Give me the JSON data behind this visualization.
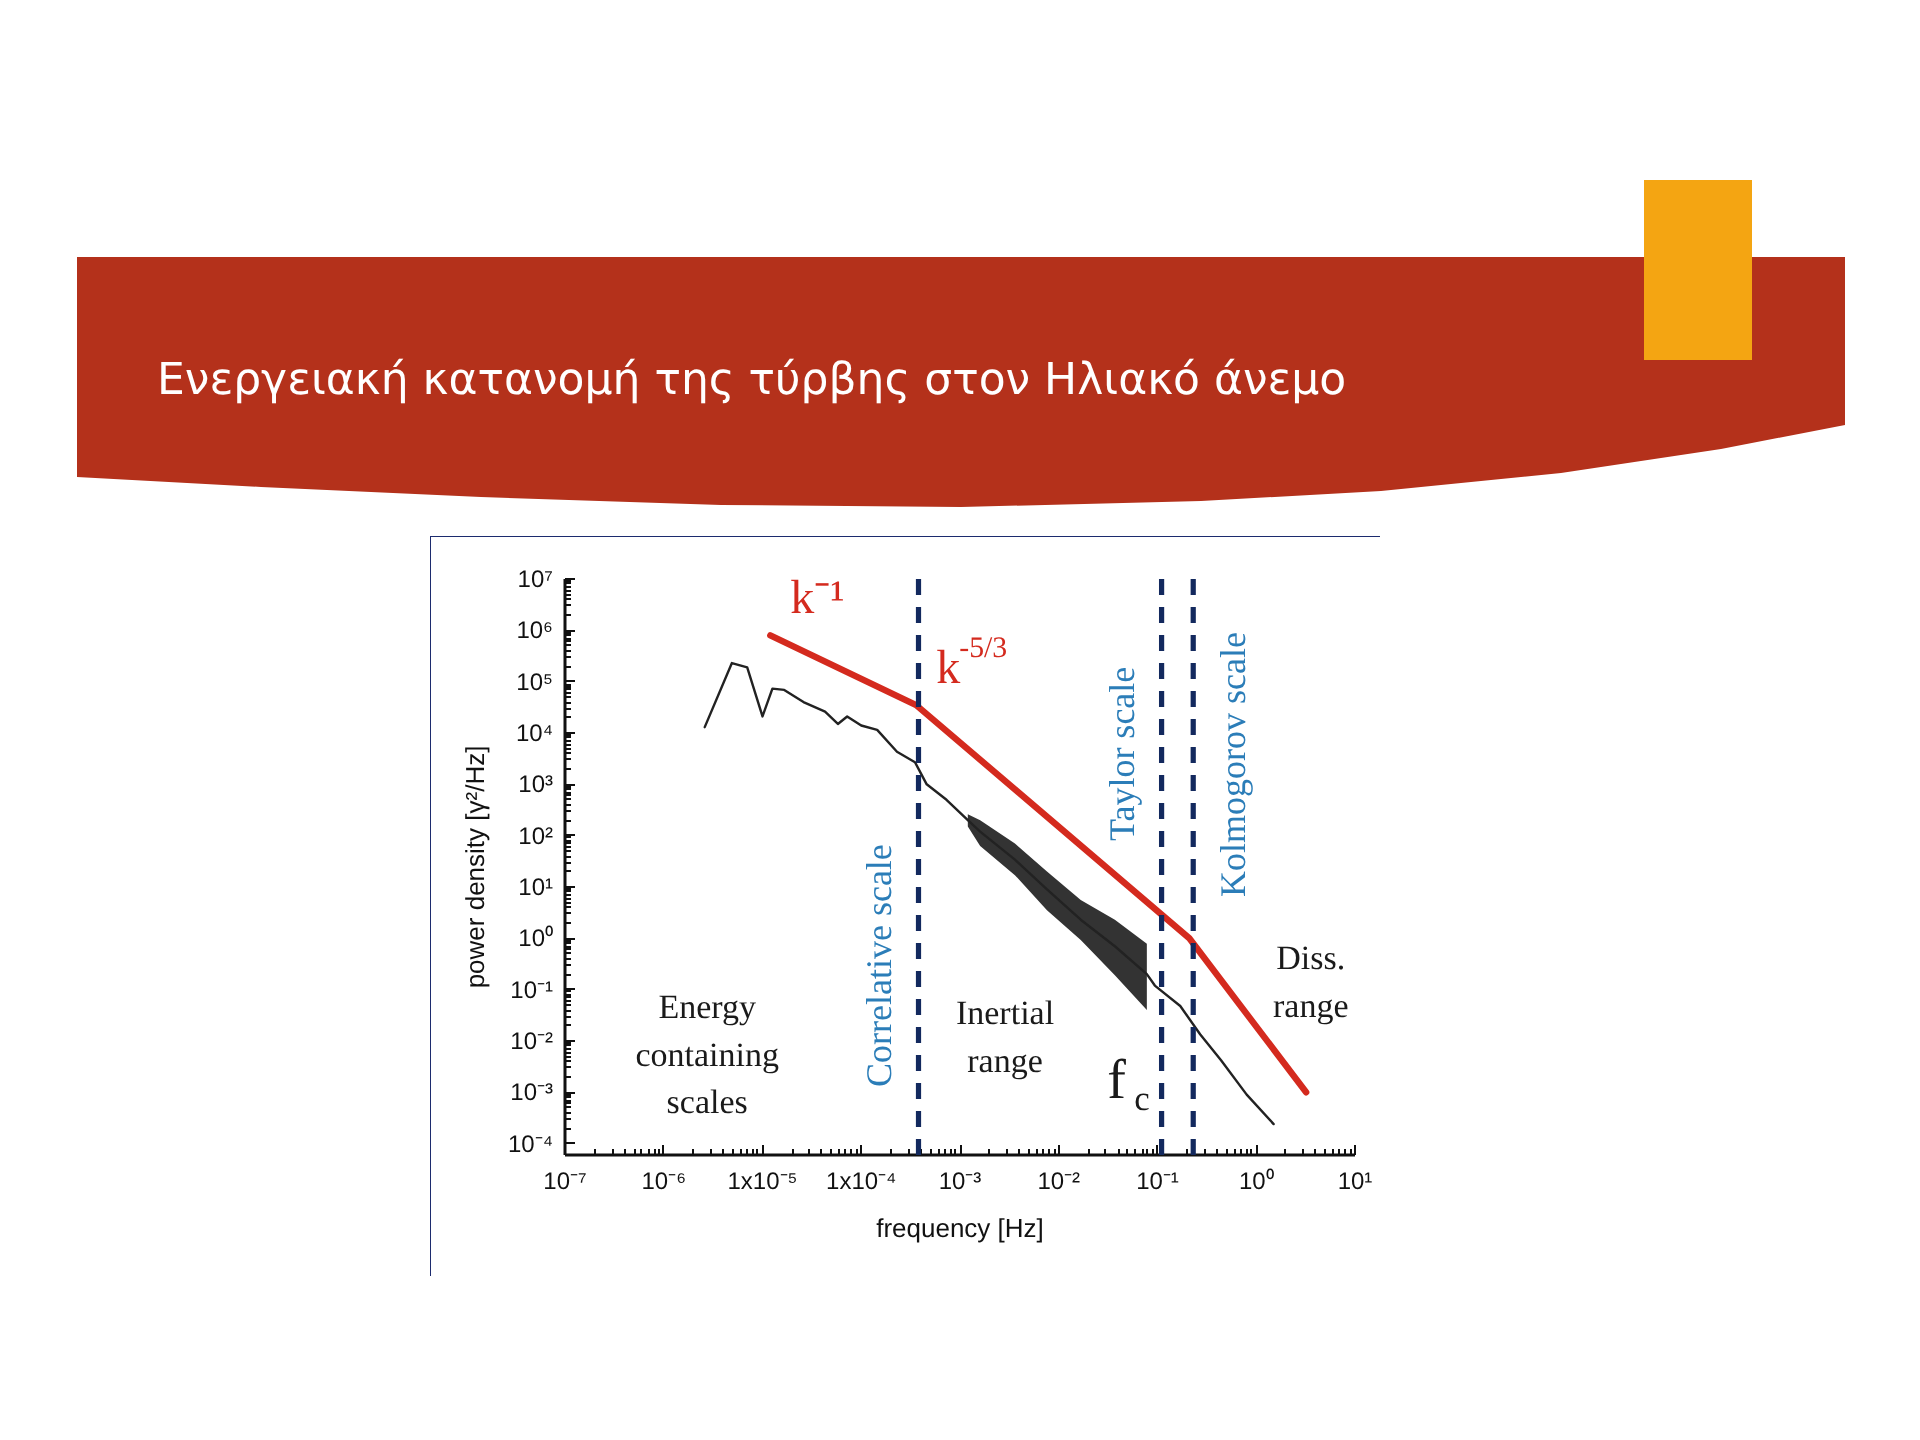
{
  "chart_data": {
    "type": "line",
    "title": "Ενεργειακή κατανομή της τύρβης στον Ηλιακό άνεμο",
    "xlabel": "frequency [Hz]",
    "ylabel": "power density [γ²/Hz]",
    "log": "xy",
    "xlim": [
      1e-07,
      10
    ],
    "ylim": [
      6e-05,
      10000000.0
    ],
    "xticks": [
      {
        "value": 1e-07,
        "label": "10⁻⁷"
      },
      {
        "value": 1e-06,
        "label": "10⁻⁶"
      },
      {
        "value": 1e-05,
        "label": "1x10⁻⁵"
      },
      {
        "value": 0.0001,
        "label": "1x10⁻⁴"
      },
      {
        "value": 0.001,
        "label": "10⁻³"
      },
      {
        "value": 0.01,
        "label": "10⁻²"
      },
      {
        "value": 0.1,
        "label": "10⁻¹"
      },
      {
        "value": 1,
        "label": "10⁰"
      },
      {
        "value": 10,
        "label": "10¹"
      }
    ],
    "yticks": [
      {
        "value": 0.0001,
        "label": "10⁻⁴"
      },
      {
        "value": 0.001,
        "label": "10⁻³"
      },
      {
        "value": 0.01,
        "label": "10⁻²"
      },
      {
        "value": 0.1,
        "label": "10⁻¹"
      },
      {
        "value": 1,
        "label": "10⁰"
      },
      {
        "value": 10,
        "label": "10¹"
      },
      {
        "value": 100,
        "label": "10²"
      },
      {
        "value": 1000,
        "label": "10³"
      },
      {
        "value": 10000,
        "label": "10⁴"
      },
      {
        "value": 100000,
        "label": "10⁵"
      },
      {
        "value": 1000000,
        "label": "10⁶"
      },
      {
        "value": 10000000,
        "label": "10⁷"
      }
    ],
    "series": [
      {
        "color": "#222222",
        "x": [
          2.6e-06,
          4.9e-06,
          7e-06,
          1e-05,
          1.26e-05,
          1.66e-05,
          2.6e-05,
          4.3e-05,
          5.8e-05,
          7.2e-05,
          0.0001,
          0.000145,
          0.00023,
          0.00035,
          0.00046,
          0.00073,
          0.0012,
          0.0016,
          0.0036,
          0.0076,
          0.0167,
          0.037,
          0.078,
          0.094,
          0.17,
          0.27,
          0.44,
          0.8,
          1.5
        ],
        "values": [
          13000.0,
          230000.0,
          190000.0,
          21000.0,
          73000.0,
          69000.0,
          40000.0,
          26000.0,
          15000.0,
          21000.0,
          14000.0,
          11500.0,
          4300,
          2700,
          1000,
          500,
          200,
          120,
          34,
          9,
          2.3,
          0.7,
          0.2,
          0.12,
          0.048,
          0.0135,
          0.0042,
          0.0009,
          0.00024
        ],
        "lower": [
          null,
          null,
          null,
          null,
          null,
          null,
          null,
          null,
          null,
          null,
          null,
          null,
          null,
          null,
          null,
          null,
          150,
          63,
          17,
          3.5,
          0.93,
          0.19,
          0.04,
          null,
          null,
          null,
          null,
          null,
          null
        ],
        "upper": [
          null,
          null,
          null,
          null,
          null,
          null,
          null,
          null,
          null,
          null,
          null,
          null,
          null,
          null,
          null,
          null,
          260,
          200,
          70,
          20,
          5.6,
          2.3,
          0.78,
          null,
          null,
          null,
          null,
          null,
          null
        ]
      },
      {
        "color": "#d42a1e",
        "x": [
          1.2e-05,
          0.00036,
          0.21,
          3.2
        ],
        "values": [
          800000.0,
          35000.0,
          1,
          0.001
        ]
      }
    ],
    "ref_lines": [
      {
        "axis": "x",
        "value": 0.00038,
        "label": "Correlative scale",
        "color": "#13295e",
        "line_style": "dashed"
      },
      {
        "axis": "x",
        "value": 0.11,
        "label": "Taylor scale",
        "color": "#13295e",
        "line_style": "dashed"
      },
      {
        "axis": "x",
        "value": 0.23,
        "label": "Kolmogorov scale",
        "color": "#13295e",
        "line_style": "dashed"
      }
    ],
    "annotations": [
      {
        "text": "k⁻¹",
        "x": 1.2e-05,
        "y": 800000.0
      },
      {
        "text": "k$^{-5/3}$",
        "x": 0.00036,
        "y": 35000.0
      },
      "Energy containing scales",
      "Inertial range",
      "Diss. range",
      "f$_{c}$"
    ]
  }
}
